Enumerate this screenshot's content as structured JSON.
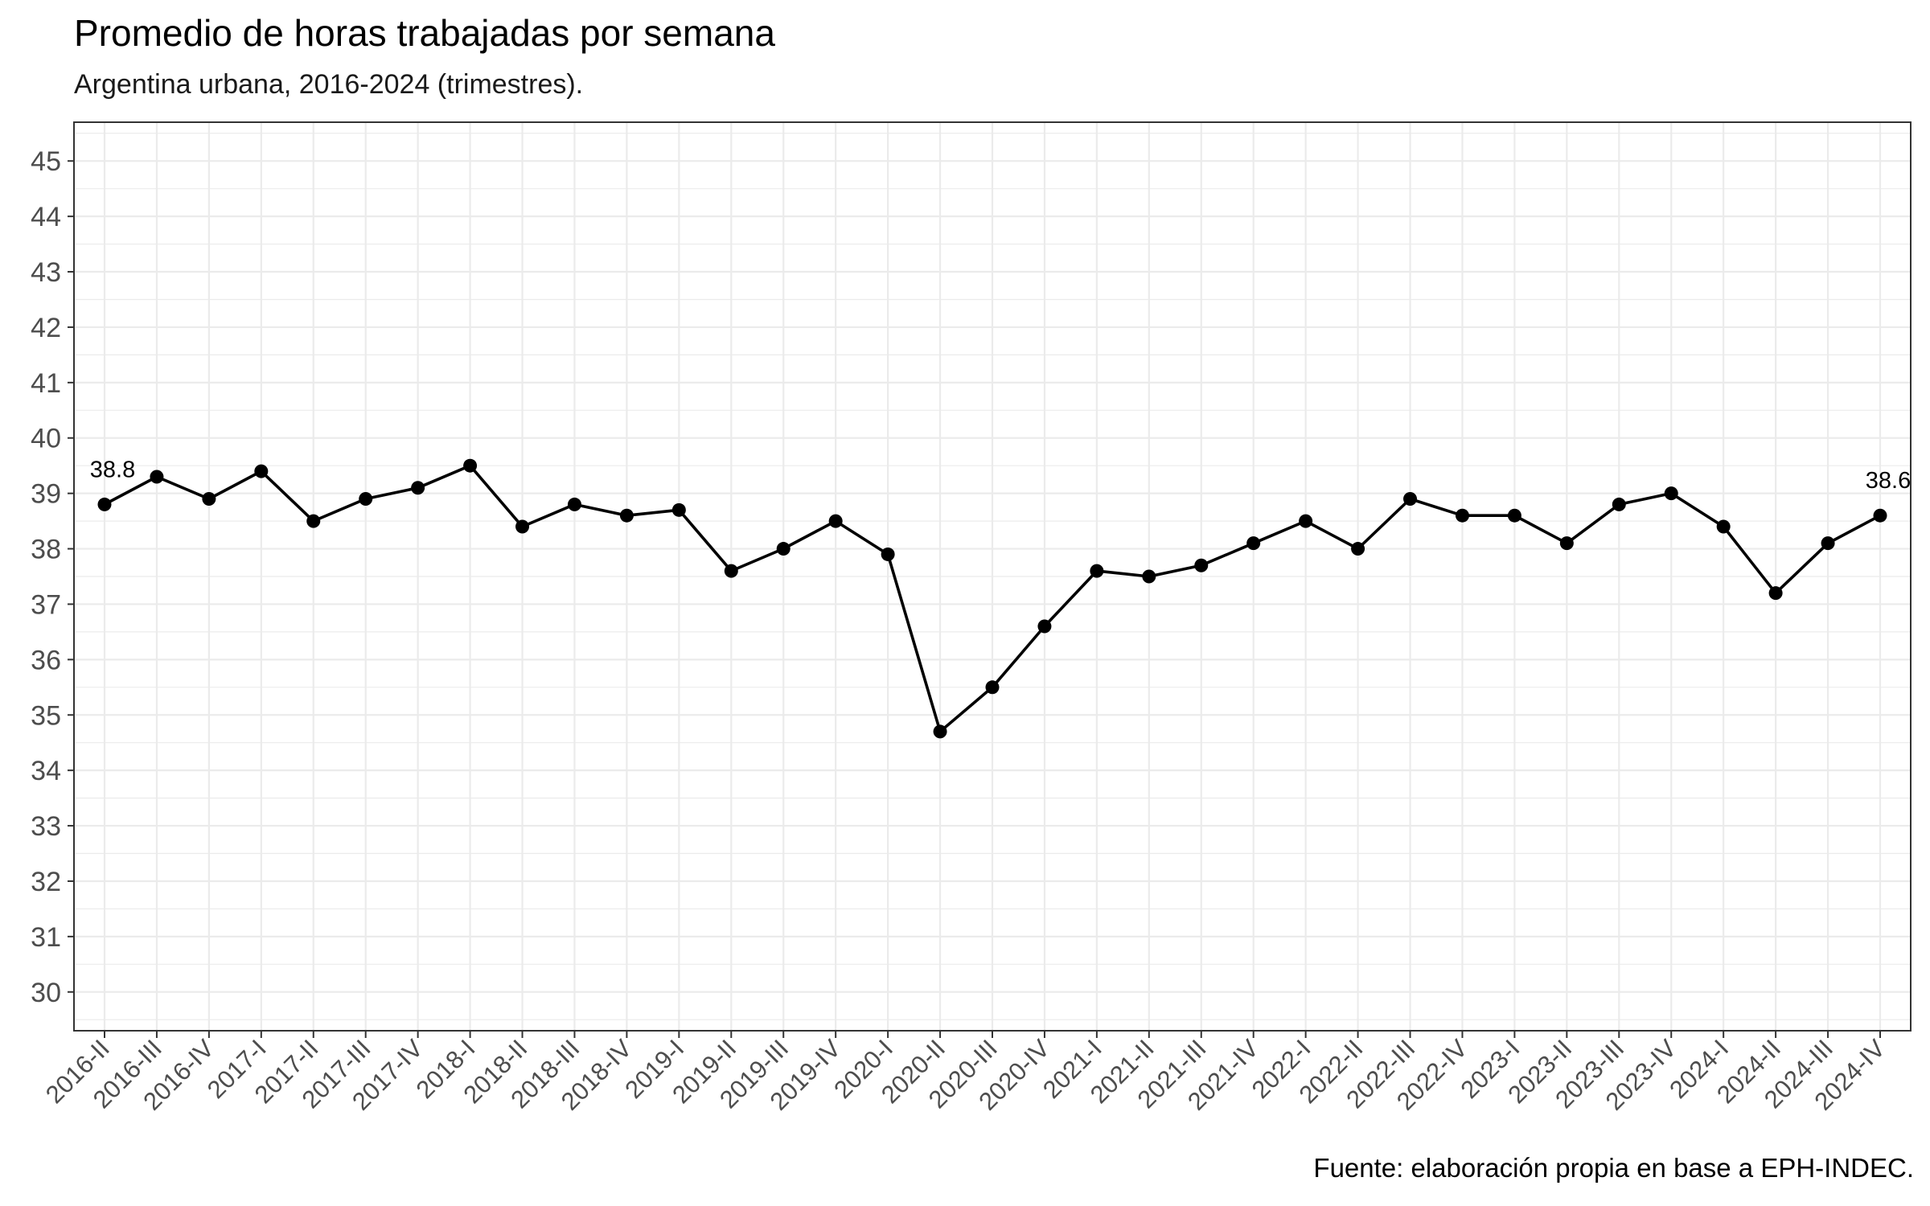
{
  "chart_data": {
    "type": "line",
    "title": "Promedio de horas trabajadas por semana",
    "subtitle": "Argentina urbana, 2016-2024 (trimestres).",
    "caption": "Fuente: elaboración propia en base a EPH-INDEC.",
    "xlabel": "",
    "ylabel": "",
    "ylim": [
      30,
      45
    ],
    "yticks": [
      30,
      31,
      32,
      33,
      34,
      35,
      36,
      37,
      38,
      39,
      40,
      41,
      42,
      43,
      44,
      45
    ],
    "grid": true,
    "categories": [
      "2016-II",
      "2016-III",
      "2016-IV",
      "2017-I",
      "2017-II",
      "2017-III",
      "2017-IV",
      "2018-I",
      "2018-II",
      "2018-III",
      "2018-IV",
      "2019-I",
      "2019-II",
      "2019-III",
      "2019-IV",
      "2020-I",
      "2020-II",
      "2020-III",
      "2020-IV",
      "2021-I",
      "2021-II",
      "2021-III",
      "2021-IV",
      "2022-I",
      "2022-II",
      "2022-III",
      "2022-IV",
      "2023-I",
      "2023-II",
      "2023-III",
      "2023-IV",
      "2024-I",
      "2024-II",
      "2024-III",
      "2024-IV"
    ],
    "values": [
      38.8,
      39.3,
      38.9,
      39.4,
      38.5,
      38.9,
      39.1,
      39.5,
      38.4,
      38.8,
      38.6,
      38.7,
      37.6,
      38.0,
      38.5,
      37.9,
      34.7,
      35.5,
      36.6,
      37.6,
      37.5,
      37.7,
      38.1,
      38.5,
      38.0,
      38.9,
      38.6,
      38.6,
      38.1,
      38.8,
      39.0,
      38.4,
      37.2,
      38.1,
      38.6
    ],
    "data_labels": [
      {
        "index": 0,
        "text": "38.8"
      },
      {
        "index": 34,
        "text": "38.6"
      }
    ],
    "line_color": "#000000",
    "point_color": "#000000",
    "grid_color": "#ebebeb",
    "panel_border_color": "#333333"
  }
}
